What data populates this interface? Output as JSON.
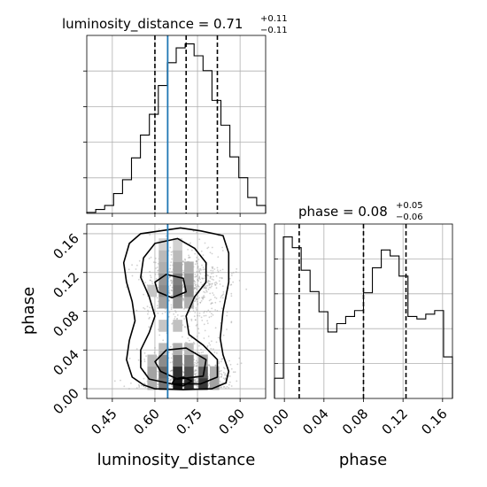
{
  "chart_data": [
    {
      "type": "histogram",
      "panel": "top-left",
      "title": {
        "prefix": "luminosity_distance = 0.71",
        "sup": "+0.11",
        "sub": "−0.11"
      },
      "xlim": [
        0.36,
        0.99
      ],
      "xticks": [
        0.45,
        0.6,
        0.75,
        0.9
      ],
      "grid": true,
      "bin_edges": [
        0.36,
        0.3915,
        0.423,
        0.4545,
        0.486,
        0.5175,
        0.549,
        0.5805,
        0.612,
        0.6435,
        0.675,
        0.7065,
        0.738,
        0.7695,
        0.801,
        0.8325,
        0.864,
        0.8955,
        0.927,
        0.9585,
        0.99
      ],
      "counts": [
        1,
        4,
        8,
        20,
        34,
        56,
        79,
        100,
        129,
        152,
        167,
        171,
        159,
        144,
        114,
        89,
        57,
        36,
        16,
        8
      ],
      "quantile_lines": [
        0.6,
        0.71,
        0.82
      ],
      "truth": 0.645,
      "truth_color": "#1f77b4"
    },
    {
      "type": "scatter_contour",
      "panel": "bottom-left",
      "xlabel": "luminosity_distance",
      "ylabel": "phase",
      "xlim": [
        0.36,
        0.99
      ],
      "ylim": [
        -0.01,
        0.17
      ],
      "xticks": [
        0.45,
        0.6,
        0.75,
        0.9
      ],
      "yticks": [
        0.0,
        0.04,
        0.08,
        0.12,
        0.16
      ],
      "grid": true,
      "truth_x": 0.645,
      "truth_color": "#1f77b4",
      "density_cells": [
        {
          "x": 0.63,
          "y": 0.005,
          "v": 0.55
        },
        {
          "x": 0.68,
          "y": 0.005,
          "v": 0.95
        },
        {
          "x": 0.72,
          "y": 0.005,
          "v": 0.85
        },
        {
          "x": 0.77,
          "y": 0.005,
          "v": 0.8
        },
        {
          "x": 0.59,
          "y": 0.005,
          "v": 0.3
        },
        {
          "x": 0.81,
          "y": 0.005,
          "v": 0.35
        },
        {
          "x": 0.63,
          "y": 0.017,
          "v": 0.6
        },
        {
          "x": 0.68,
          "y": 0.017,
          "v": 0.85
        },
        {
          "x": 0.72,
          "y": 0.017,
          "v": 0.7
        },
        {
          "x": 0.77,
          "y": 0.017,
          "v": 0.65
        },
        {
          "x": 0.59,
          "y": 0.017,
          "v": 0.35
        },
        {
          "x": 0.81,
          "y": 0.017,
          "v": 0.3
        },
        {
          "x": 0.63,
          "y": 0.029,
          "v": 0.45
        },
        {
          "x": 0.68,
          "y": 0.029,
          "v": 0.55
        },
        {
          "x": 0.72,
          "y": 0.029,
          "v": 0.5
        },
        {
          "x": 0.77,
          "y": 0.029,
          "v": 0.35
        },
        {
          "x": 0.59,
          "y": 0.029,
          "v": 0.25
        },
        {
          "x": 0.63,
          "y": 0.041,
          "v": 0.25
        },
        {
          "x": 0.68,
          "y": 0.041,
          "v": 0.3
        },
        {
          "x": 0.72,
          "y": 0.041,
          "v": 0.25
        },
        {
          "x": 0.63,
          "y": 0.065,
          "v": 0.2
        },
        {
          "x": 0.68,
          "y": 0.065,
          "v": 0.22
        },
        {
          "x": 0.63,
          "y": 0.089,
          "v": 0.35
        },
        {
          "x": 0.68,
          "y": 0.089,
          "v": 0.4
        },
        {
          "x": 0.72,
          "y": 0.089,
          "v": 0.3
        },
        {
          "x": 0.63,
          "y": 0.101,
          "v": 0.45
        },
        {
          "x": 0.68,
          "y": 0.101,
          "v": 0.55
        },
        {
          "x": 0.72,
          "y": 0.101,
          "v": 0.45
        },
        {
          "x": 0.59,
          "y": 0.101,
          "v": 0.2
        },
        {
          "x": 0.63,
          "y": 0.113,
          "v": 0.4
        },
        {
          "x": 0.68,
          "y": 0.113,
          "v": 0.5
        },
        {
          "x": 0.72,
          "y": 0.113,
          "v": 0.4
        },
        {
          "x": 0.63,
          "y": 0.125,
          "v": 0.3
        },
        {
          "x": 0.68,
          "y": 0.125,
          "v": 0.35
        },
        {
          "x": 0.72,
          "y": 0.125,
          "v": 0.3
        },
        {
          "x": 0.63,
          "y": 0.137,
          "v": 0.25
        },
        {
          "x": 0.68,
          "y": 0.137,
          "v": 0.25
        },
        {
          "x": 0.63,
          "y": 0.149,
          "v": 0.15
        },
        {
          "x": 0.68,
          "y": 0.149,
          "v": 0.15
        }
      ],
      "contours": [
        [
          [
            0.56,
            0.004
          ],
          [
            0.6,
            0.0
          ],
          [
            0.7,
            -0.001
          ],
          [
            0.8,
            0.0
          ],
          [
            0.85,
            0.006
          ],
          [
            0.86,
            0.018
          ],
          [
            0.84,
            0.035
          ],
          [
            0.83,
            0.052
          ],
          [
            0.84,
            0.08
          ],
          [
            0.86,
            0.11
          ],
          [
            0.86,
            0.14
          ],
          [
            0.84,
            0.158
          ],
          [
            0.76,
            0.163
          ],
          [
            0.69,
            0.166
          ],
          [
            0.62,
            0.163
          ],
          [
            0.55,
            0.16
          ],
          [
            0.51,
            0.15
          ],
          [
            0.49,
            0.13
          ],
          [
            0.5,
            0.11
          ],
          [
            0.52,
            0.09
          ],
          [
            0.53,
            0.07
          ],
          [
            0.51,
            0.05
          ],
          [
            0.5,
            0.03
          ],
          [
            0.52,
            0.012
          ]
        ],
        [
          [
            0.58,
            0.01
          ],
          [
            0.66,
            0.005
          ],
          [
            0.76,
            0.005
          ],
          [
            0.82,
            0.012
          ],
          [
            0.82,
            0.03
          ],
          [
            0.77,
            0.045
          ],
          [
            0.72,
            0.056
          ],
          [
            0.71,
            0.075
          ],
          [
            0.74,
            0.095
          ],
          [
            0.78,
            0.11
          ],
          [
            0.78,
            0.13
          ],
          [
            0.74,
            0.145
          ],
          [
            0.68,
            0.155
          ],
          [
            0.6,
            0.15
          ],
          [
            0.56,
            0.135
          ],
          [
            0.55,
            0.115
          ],
          [
            0.58,
            0.095
          ],
          [
            0.6,
            0.075
          ],
          [
            0.58,
            0.058
          ],
          [
            0.55,
            0.04
          ],
          [
            0.55,
            0.022
          ]
        ],
        [
          [
            0.62,
            0.018
          ],
          [
            0.68,
            0.01
          ],
          [
            0.77,
            0.013
          ],
          [
            0.78,
            0.03
          ],
          [
            0.71,
            0.042
          ],
          [
            0.64,
            0.04
          ],
          [
            0.6,
            0.028
          ]
        ],
        [
          [
            0.61,
            0.1
          ],
          [
            0.66,
            0.094
          ],
          [
            0.71,
            0.1
          ],
          [
            0.7,
            0.114
          ],
          [
            0.64,
            0.118
          ],
          [
            0.6,
            0.11
          ]
        ],
        [
          [
            0.66,
            0.005
          ],
          [
            0.7,
            0.003
          ],
          [
            0.73,
            0.008
          ],
          [
            0.7,
            0.012
          ],
          [
            0.67,
            0.01
          ]
        ]
      ],
      "scatter_seed": 7
    },
    {
      "type": "histogram",
      "panel": "bottom-right",
      "title": {
        "prefix": "phase = 0.08",
        "sup": "+0.05",
        "sub": "−0.06"
      },
      "xlabel": "phase",
      "xlim": [
        -0.01,
        0.17
      ],
      "xticks": [
        0.0,
        0.04,
        0.08,
        0.12,
        0.16
      ],
      "grid": true,
      "bin_edges": [
        -0.01,
        -0.001,
        0.008,
        0.017,
        0.026,
        0.035,
        0.044,
        0.053,
        0.062,
        0.071,
        0.08,
        0.089,
        0.098,
        0.107,
        0.116,
        0.125,
        0.134,
        0.143,
        0.152,
        0.161,
        0.17
      ],
      "counts": [
        17,
        136,
        127,
        108,
        90,
        73,
        56,
        63,
        69,
        74,
        89,
        110,
        125,
        120,
        103,
        69,
        67,
        71,
        74,
        35
      ],
      "quantile_lines": [
        0.015,
        0.08,
        0.123
      ]
    }
  ]
}
